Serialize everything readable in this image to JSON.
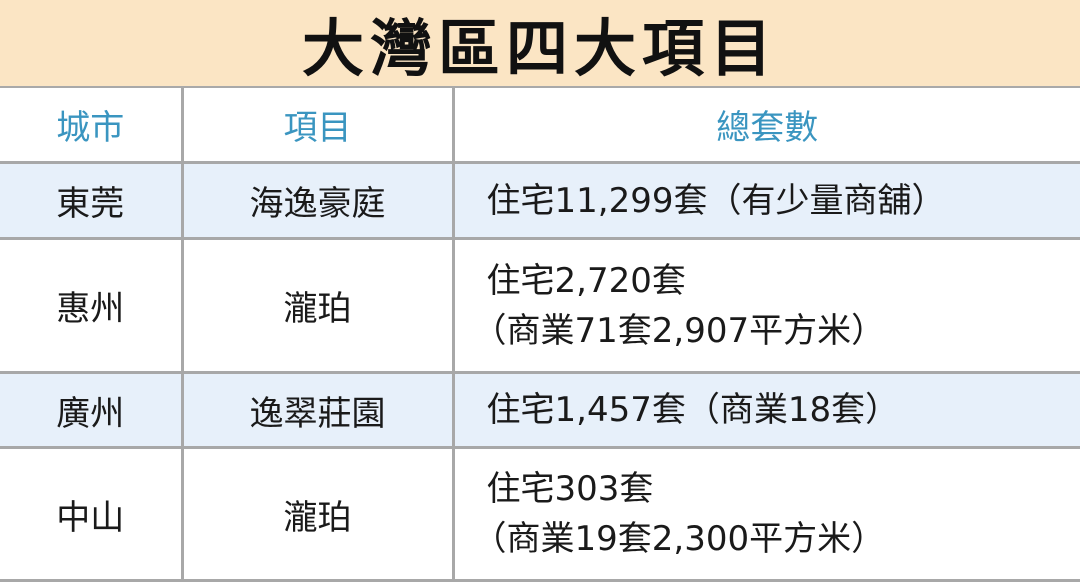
{
  "title": "大灣區四大項目",
  "table": {
    "headers": [
      "城市",
      "項目",
      "總套數"
    ],
    "rows": [
      {
        "city": "東莞",
        "project": "海逸豪庭",
        "units": [
          "住宅11,299套（有少量商舖）"
        ]
      },
      {
        "city": "惠州",
        "project": "瀧珀",
        "units": [
          "住宅2,720套",
          "（商業71套2,907平方米）"
        ]
      },
      {
        "city": "廣州",
        "project": "逸翠莊園",
        "units": [
          "住宅1,457套（商業18套）"
        ]
      },
      {
        "city": "中山",
        "project": "瀧珀",
        "units": [
          "住宅303套",
          "（商業19套2,300平方米）"
        ]
      }
    ]
  },
  "colors": {
    "title_bg": "#fbe5c4",
    "header_text": "#3a95c0",
    "alt_row": "#e7f0fa",
    "grid": "#a8a8a8"
  }
}
